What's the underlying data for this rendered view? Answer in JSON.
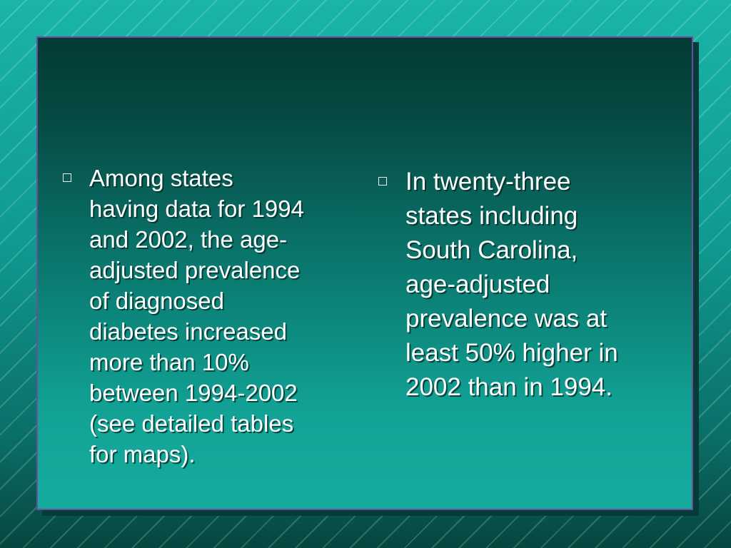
{
  "slide": {
    "colors": {
      "background": "#0f8f86",
      "panel_top": "#033a34",
      "panel_bottom": "#15ac9f",
      "panel_border": "#6a4fa0",
      "text": "#ffffff"
    },
    "bullets": [
      {
        "icon": "square-bullet-icon",
        "lines": [
          "Among states",
          "having data for 1994",
          "and 2002, the age-",
          "adjusted prevalence",
          "of diagnosed",
          "diabetes increased",
          "more than 10%",
          "between 1994-2002",
          "(see detailed tables",
          "for maps)."
        ]
      },
      {
        "icon": "square-bullet-icon",
        "lines": [
          "In twenty-three",
          "states including",
          "South Carolina,",
          "age-adjusted",
          "prevalence was at",
          "least 50% higher in",
          "2002 than in 1994."
        ]
      }
    ]
  }
}
